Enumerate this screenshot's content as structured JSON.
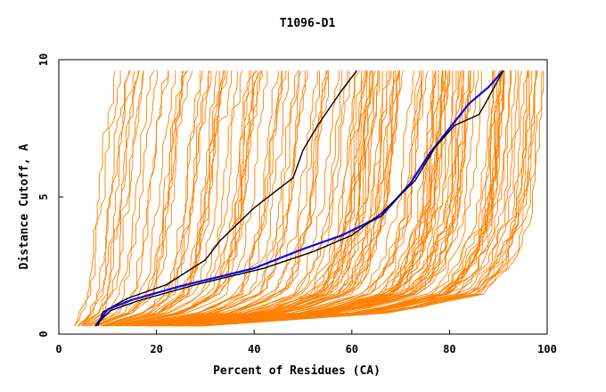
{
  "chart_data": {
    "type": "line",
    "title": "T1096-D1",
    "xlabel": "Percent of Residues (CA)",
    "ylabel": "Distance Cutoff, A",
    "xlim": [
      0,
      100
    ],
    "ylim": [
      0,
      10
    ],
    "xticks": [
      "0",
      "20",
      "40",
      "60",
      "80",
      "100"
    ],
    "yticks": [
      "0",
      "5",
      "10"
    ],
    "grid": false,
    "legend": "none",
    "colors": {
      "background_models": "#ff8000",
      "highlight_black": "#000000",
      "highlight_blue": "#0000ff"
    },
    "background_series_description": "about 150 orange model curves spanning the range between the extremes below",
    "background_envelope": {
      "y": [
        0.3,
        0.8,
        1.5,
        2.5,
        4.0,
        5.0,
        7.0,
        9.6
      ],
      "left_x": [
        3,
        4,
        5,
        5.5,
        6.5,
        7,
        8,
        11
      ],
      "right_x": [
        30,
        70,
        88,
        93,
        96.5,
        97.5,
        98.5,
        99.5
      ]
    },
    "highlight_series": [
      {
        "color": "#000000",
        "points": [
          [
            8,
            0.3
          ],
          [
            9,
            0.8
          ],
          [
            14,
            1.3
          ],
          [
            22,
            1.8
          ],
          [
            30,
            2.7
          ],
          [
            33,
            3.4
          ],
          [
            40,
            4.6
          ],
          [
            48,
            5.7
          ],
          [
            50,
            6.7
          ],
          [
            53,
            7.6
          ],
          [
            58,
            8.9
          ],
          [
            61,
            9.6
          ]
        ]
      },
      {
        "color": "#0000ff",
        "points": [
          [
            7.5,
            0.3
          ],
          [
            10,
            0.9
          ],
          [
            15,
            1.25
          ],
          [
            25,
            1.75
          ],
          [
            40,
            2.4
          ],
          [
            50,
            3.1
          ],
          [
            58,
            3.6
          ],
          [
            66,
            4.3
          ],
          [
            72,
            5.5
          ],
          [
            76,
            6.6
          ],
          [
            80,
            7.5
          ],
          [
            84,
            8.4
          ],
          [
            88,
            9.0
          ],
          [
            91,
            9.6
          ]
        ]
      },
      {
        "color": "#000000",
        "points": [
          [
            7.5,
            0.3
          ],
          [
            10.5,
            0.85
          ],
          [
            16,
            1.2
          ],
          [
            28,
            1.8
          ],
          [
            42,
            2.4
          ],
          [
            52,
            3.0
          ],
          [
            60,
            3.6
          ],
          [
            66,
            4.4
          ],
          [
            73,
            5.6
          ],
          [
            77,
            6.8
          ],
          [
            81,
            7.6
          ],
          [
            86,
            8.0
          ],
          [
            87,
            8.3
          ],
          [
            91,
            9.6
          ]
        ]
      }
    ]
  }
}
